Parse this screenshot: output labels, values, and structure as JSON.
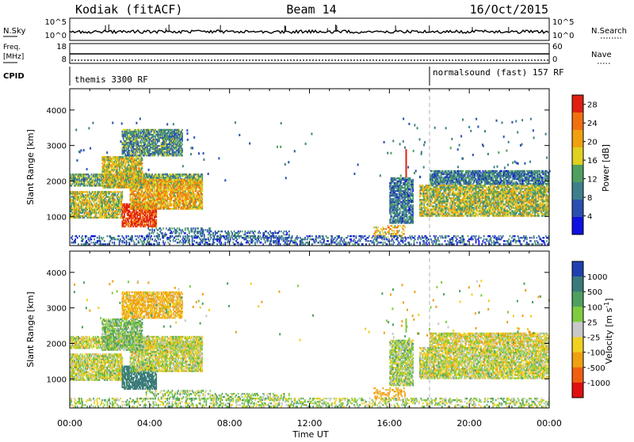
{
  "header": {
    "station": "Kodiak (fitACF)",
    "beam": "Beam 14",
    "date": "16/Oct/2015"
  },
  "summary_panels": {
    "nsky_label": "N.Sky",
    "nsky_ticks": [
      "10^5",
      "10^0"
    ],
    "nsearch_label": "N.Search",
    "nsearch_ticks": [
      "10^5",
      "10^0"
    ],
    "freq_label_top": "Freq.",
    "freq_label_unit": "[MHz]",
    "freq_ticks": [
      "18",
      "8"
    ],
    "nave_label": "Nave",
    "nave_ticks": [
      "60",
      "0"
    ],
    "cpid_label": "CPID",
    "cpid_segments": [
      {
        "label": "themis 3300 RF",
        "start_hour": 0
      },
      {
        "label": "normalsound (fast) 157 RF",
        "start_hour": 18
      }
    ]
  },
  "chart_data": [
    {
      "type": "heatmap",
      "title": "",
      "xlabel": "Time UT",
      "ylabel": "Slant Range [km]",
      "xlim": [
        0,
        24
      ],
      "ylim": [
        180,
        4600
      ],
      "x_tick_labels": [
        "00:00",
        "04:00",
        "08:00",
        "12:00",
        "16:00",
        "20:00",
        "00:00"
      ],
      "y_ticks": [
        1000,
        2000,
        3000,
        4000
      ],
      "colorbar": {
        "label": "Power [dB]",
        "ticks": [
          "4",
          "8",
          "12",
          "16",
          "20",
          "24",
          "28"
        ],
        "range": [
          0,
          30
        ],
        "colors": [
          "#1010e0",
          "#2a4fb0",
          "#3f7f8c",
          "#4fa060",
          "#e0d020",
          "#f0a010",
          "#f07010",
          "#e02010"
        ]
      },
      "regions": [
        {
          "t0": 0.0,
          "t1": 6.6,
          "r0": 1850,
          "r1": 2200,
          "mean": 13
        },
        {
          "t0": 0.0,
          "t1": 2.6,
          "r0": 950,
          "r1": 1700,
          "mean": 16
        },
        {
          "t0": 2.6,
          "t1": 4.3,
          "r0": 700,
          "r1": 1350,
          "mean": 28
        },
        {
          "t0": 3.0,
          "t1": 6.6,
          "r0": 1200,
          "r1": 2050,
          "mean": 20
        },
        {
          "t0": 1.6,
          "t1": 3.6,
          "r0": 1800,
          "r1": 2700,
          "mean": 17
        },
        {
          "t0": 2.6,
          "t1": 5.6,
          "r0": 2700,
          "r1": 3450,
          "mean": 11
        },
        {
          "t0": 3.8,
          "t1": 7.0,
          "r0": 420,
          "r1": 650,
          "mean": 9
        },
        {
          "t0": 7.0,
          "t1": 11.0,
          "r0": 380,
          "r1": 600,
          "mean": 8
        },
        {
          "t0": 15.2,
          "t1": 16.8,
          "r0": 400,
          "r1": 750,
          "mean": 20
        },
        {
          "t0": 16.0,
          "t1": 17.2,
          "r0": 800,
          "r1": 2100,
          "mean": 9
        },
        {
          "t0": 17.5,
          "t1": 24.0,
          "r0": 1000,
          "r1": 1900,
          "mean": 16
        },
        {
          "t0": 18.0,
          "t1": 24.0,
          "r0": 1900,
          "r1": 2300,
          "mean": 9
        },
        {
          "t0": 0.0,
          "t1": 24.0,
          "r0": 200,
          "r1": 450,
          "mean": 7
        }
      ],
      "annotations": [
        {
          "t": 16.8,
          "r0": 2100,
          "r1": 2900,
          "value": 28
        }
      ]
    },
    {
      "type": "heatmap",
      "title": "",
      "xlabel": "Time UT",
      "ylabel": "Slant Range [km]",
      "xlim": [
        0,
        24
      ],
      "ylim": [
        180,
        4600
      ],
      "x_tick_labels": [
        "00:00",
        "04:00",
        "08:00",
        "12:00",
        "16:00",
        "20:00",
        "00:00"
      ],
      "y_ticks": [
        1000,
        2000,
        3000,
        4000
      ],
      "colorbar": {
        "label": "Velocity [m s^-1]",
        "ticks": [
          "1000",
          "500",
          "100",
          "25",
          "-25",
          "-100",
          "-500",
          "-1000"
        ],
        "bins": [
          1000,
          500,
          100,
          25,
          -25,
          -100,
          -500,
          -1000
        ],
        "colors": [
          "#2040b0",
          "#3a7a7a",
          "#4fa060",
          "#80cc40",
          "#c8c8c8",
          "#f0d020",
          "#f0a010",
          "#f06010",
          "#e01010"
        ]
      },
      "regions": [
        {
          "t0": 0.0,
          "t1": 6.6,
          "r0": 1850,
          "r1": 2200,
          "mean": 0
        },
        {
          "t0": 0.0,
          "t1": 2.6,
          "r0": 950,
          "r1": 1700,
          "mean": 0
        },
        {
          "t0": 2.6,
          "t1": 4.3,
          "r0": 700,
          "r1": 1350,
          "mean": 600
        },
        {
          "t0": 3.0,
          "t1": 6.6,
          "r0": 1200,
          "r1": 2050,
          "mean": 0
        },
        {
          "t0": 1.6,
          "t1": 3.6,
          "r0": 1800,
          "r1": 2700,
          "mean": 80
        },
        {
          "t0": 2.6,
          "t1": 5.6,
          "r0": 2700,
          "r1": 3450,
          "mean": -120
        },
        {
          "t0": 3.8,
          "t1": 7.0,
          "r0": 420,
          "r1": 650,
          "mean": 60
        },
        {
          "t0": 7.0,
          "t1": 11.0,
          "r0": 380,
          "r1": 600,
          "mean": 50
        },
        {
          "t0": 15.2,
          "t1": 16.8,
          "r0": 400,
          "r1": 750,
          "mean": -200
        },
        {
          "t0": 16.0,
          "t1": 17.2,
          "r0": 800,
          "r1": 2100,
          "mean": 40
        },
        {
          "t0": 17.5,
          "t1": 24.0,
          "r0": 1000,
          "r1": 1900,
          "mean": 0
        },
        {
          "t0": 18.0,
          "t1": 24.0,
          "r0": 1900,
          "r1": 2300,
          "mean": -30
        },
        {
          "t0": 0.0,
          "t1": 24.0,
          "r0": 200,
          "r1": 450,
          "mean": 40
        }
      ],
      "annotations": [
        {
          "t": 16.8,
          "r0": 2300,
          "r1": 2700,
          "value": 60
        }
      ]
    }
  ]
}
